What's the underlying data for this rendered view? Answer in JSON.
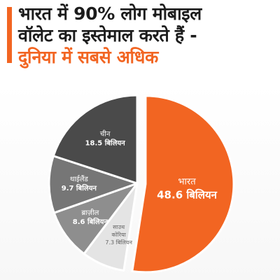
{
  "header": {
    "title_line1": "भारत में 90% लोग मोबाइल",
    "title_line2": "वॉलेट का इस्तेमाल करते हैं -",
    "title_line3": "दुनिया में सबसे अधिक"
  },
  "colors": {
    "accent": "#f26522",
    "china": "#4a4a4a",
    "thailand": "#767676",
    "brazil": "#8e8e8e",
    "korea": "#e4e4e4",
    "india": "#f26522"
  },
  "chart_data": {
    "type": "pie",
    "unit": "बिलियन",
    "slices": [
      {
        "country": "भारत",
        "value": 48.6,
        "value_label": "48.6 बिलियन",
        "color": "#f26522",
        "exploded": true
      },
      {
        "country": "साउथ कोरिया",
        "country_line1": "साउथ",
        "country_line2": "कोरिया",
        "value": 7.3,
        "value_label": "7.3 बिलियन",
        "color": "#e4e4e4"
      },
      {
        "country": "ब्राज़ील",
        "value": 8.6,
        "value_label": "8.6 बिलियन",
        "color": "#8e8e8e"
      },
      {
        "country": "थाईलैंड",
        "value": 9.7,
        "value_label": "9.7 बिलियन",
        "color": "#767676"
      },
      {
        "country": "चीन",
        "value": 18.5,
        "value_label": "18.5 बिलियन",
        "color": "#4a4a4a"
      }
    ]
  }
}
